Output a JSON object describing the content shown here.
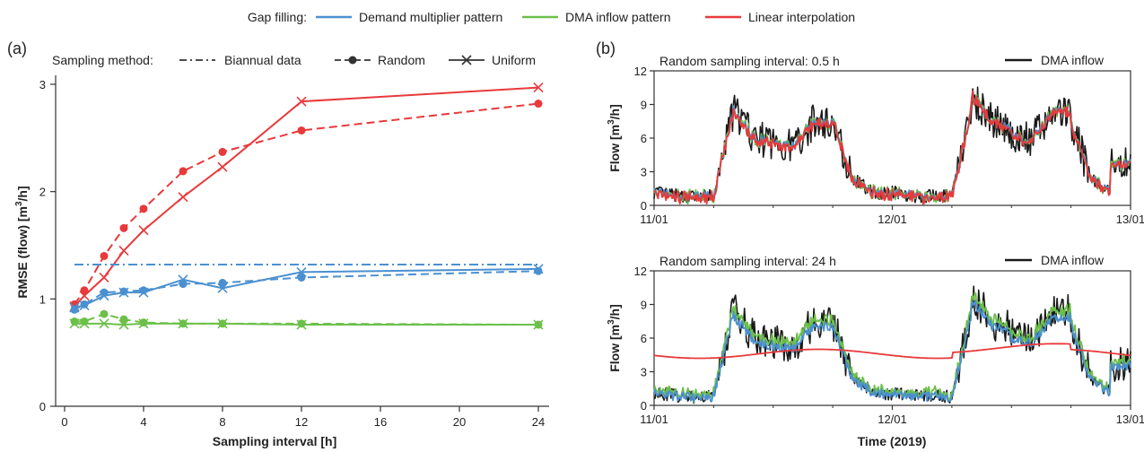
{
  "legend": {
    "gap_filling_title": "Gap filling:",
    "sampling_title": "Sampling method:",
    "gap_methods": [
      {
        "name": "Demand multiplier pattern",
        "color": "#4a90d0"
      },
      {
        "name": "DMA inflow pattern",
        "color": "#6cc04a"
      },
      {
        "name": "Linear interpolation",
        "color": "#e8393b"
      }
    ],
    "sampling_methods": [
      "Biannual data",
      "Random",
      "Uniform"
    ]
  },
  "colors": {
    "blue": "#4a90d0",
    "green": "#6cc04a",
    "red": "#e8393b",
    "black": "#1a1a1a"
  },
  "chart_data": [
    {
      "type": "line",
      "panel_label": "(a)",
      "xlabel": "Sampling interval [h]",
      "ylabel": "RMSE (flow) [m³/h]",
      "xlim": [
        -0.3,
        24.5
      ],
      "ylim": [
        0,
        3.05
      ],
      "xticks": [
        0,
        4,
        8,
        12,
        16,
        20,
        24
      ],
      "yticks": [
        0,
        1,
        2,
        3
      ],
      "x": [
        0.5,
        1,
        2,
        3,
        4,
        6,
        8,
        12,
        24
      ],
      "series": [
        {
          "name": "Linear interpolation",
          "sampling": "Uniform",
          "color": "#e8393b",
          "values": [
            0.93,
            1.03,
            1.2,
            1.45,
            1.64,
            1.95,
            2.23,
            2.84,
            2.97
          ]
        },
        {
          "name": "Linear interpolation",
          "sampling": "Random",
          "color": "#e8393b",
          "values": [
            0.95,
            1.08,
            1.4,
            1.66,
            1.84,
            2.19,
            2.37,
            2.57,
            2.82
          ]
        },
        {
          "name": "Demand multiplier pattern",
          "sampling": "Uniform",
          "color": "#4a90d0",
          "values": [
            0.92,
            0.94,
            1.03,
            1.06,
            1.06,
            1.18,
            1.1,
            1.25,
            1.28
          ]
        },
        {
          "name": "Demand multiplier pattern",
          "sampling": "Random",
          "color": "#4a90d0",
          "values": [
            0.9,
            0.95,
            1.06,
            1.07,
            1.08,
            1.14,
            1.15,
            1.2,
            1.26
          ]
        },
        {
          "name": "Demand multiplier pattern",
          "sampling": "Biannual data",
          "color": "#4a90d0",
          "values": [
            1.32,
            1.32,
            1.32,
            1.32,
            1.32,
            1.32,
            1.32,
            1.32,
            1.32
          ]
        },
        {
          "name": "DMA inflow pattern",
          "sampling": "Uniform",
          "color": "#6cc04a",
          "values": [
            0.77,
            0.77,
            0.77,
            0.76,
            0.77,
            0.77,
            0.77,
            0.76,
            0.76
          ]
        },
        {
          "name": "DMA inflow pattern",
          "sampling": "Random",
          "color": "#6cc04a",
          "values": [
            0.79,
            0.79,
            0.86,
            0.81,
            0.78,
            0.77,
            0.77,
            0.77,
            0.76
          ]
        }
      ]
    },
    {
      "type": "line",
      "panel_label": "(b)",
      "title": "Random sampling interval: 0.5 h",
      "xlabel": "",
      "ylabel": "Flow [m³/h]",
      "ylim": [
        0,
        12
      ],
      "yticks": [
        0,
        3,
        6,
        9,
        12
      ],
      "xticks": [
        "11/01",
        "12/01",
        "13/01"
      ],
      "legend": "DMA inflow",
      "series": [
        {
          "name": "DMA inflow",
          "color": "#1a1a1a"
        },
        {
          "name": "Demand multiplier pattern",
          "color": "#4a90d0"
        },
        {
          "name": "DMA inflow pattern",
          "color": "#6cc04a"
        },
        {
          "name": "Linear interpolation",
          "color": "#e8393b"
        }
      ]
    },
    {
      "type": "line",
      "title": "Random sampling interval: 24 h",
      "xlabel": "Time (2019)",
      "ylabel": "Flow [m³/h]",
      "ylim": [
        0,
        12
      ],
      "yticks": [
        0,
        3,
        6,
        9,
        12
      ],
      "xticks": [
        "11/01",
        "12/01",
        "13/01"
      ],
      "legend": "DMA inflow",
      "series": [
        {
          "name": "DMA inflow",
          "color": "#1a1a1a"
        },
        {
          "name": "Demand multiplier pattern",
          "color": "#4a90d0"
        },
        {
          "name": "DMA inflow pattern",
          "color": "#6cc04a"
        },
        {
          "name": "Linear interpolation",
          "color": "#e8393b"
        }
      ]
    }
  ]
}
